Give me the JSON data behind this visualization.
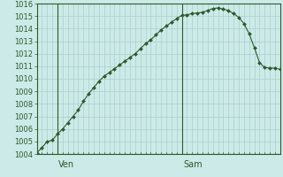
{
  "background_color": "#cceae7",
  "line_color": "#2d5a2d",
  "marker_color": "#2d5a2d",
  "grid_color": "#aacfcc",
  "axis_color": "#2d5a2d",
  "tick_color": "#2d5a2d",
  "ylim": [
    1004,
    1016
  ],
  "yticks": [
    1004,
    1005,
    1006,
    1007,
    1008,
    1009,
    1010,
    1011,
    1012,
    1013,
    1014,
    1015,
    1016
  ],
  "ven_x": 4,
  "sam_x": 28,
  "x_values": [
    0,
    1,
    2,
    3,
    4,
    5,
    6,
    7,
    8,
    9,
    10,
    11,
    12,
    13,
    14,
    15,
    16,
    17,
    18,
    19,
    20,
    21,
    22,
    23,
    24,
    25,
    26,
    27,
    28,
    29,
    30,
    31,
    32,
    33,
    34,
    35,
    36,
    37,
    38,
    39,
    40,
    41,
    42,
    43,
    44,
    45,
    46,
    47
  ],
  "y_values": [
    1004.1,
    1004.5,
    1005.0,
    1005.1,
    1005.6,
    1006.0,
    1006.5,
    1007.0,
    1007.5,
    1008.2,
    1008.8,
    1009.3,
    1009.8,
    1010.2,
    1010.5,
    1010.8,
    1011.1,
    1011.4,
    1011.7,
    1012.0,
    1012.4,
    1012.8,
    1013.1,
    1013.5,
    1013.9,
    1014.2,
    1014.5,
    1014.8,
    1015.05,
    1015.1,
    1015.2,
    1015.25,
    1015.3,
    1015.45,
    1015.6,
    1015.65,
    1015.55,
    1015.45,
    1015.2,
    1014.9,
    1014.4,
    1013.6,
    1012.5,
    1011.3,
    1010.9,
    1010.85,
    1010.85,
    1010.75
  ],
  "xlim": [
    0,
    47
  ],
  "ven_label": "Ven",
  "sam_label": "Sam",
  "label_fontsize": 7,
  "ytick_fontsize": 6
}
